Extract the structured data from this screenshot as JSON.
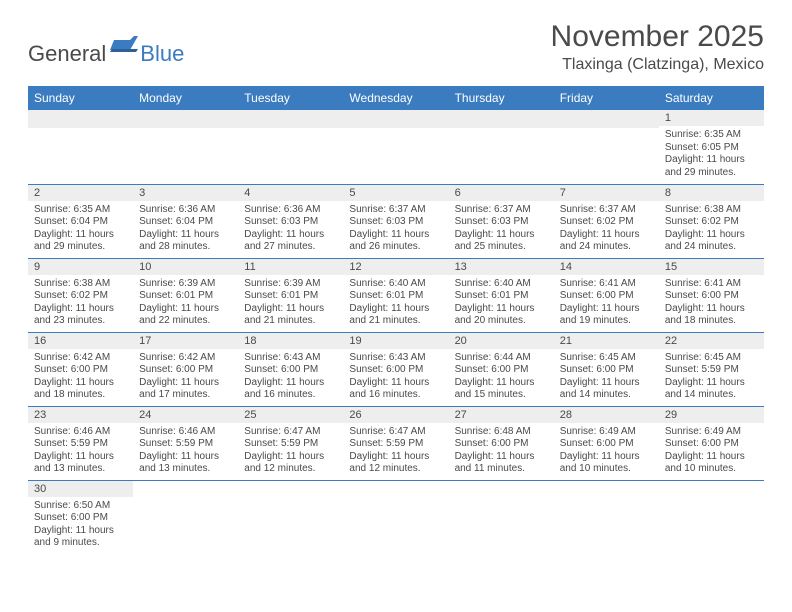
{
  "logo": {
    "general": "General",
    "blue": "Blue"
  },
  "title": "November 2025",
  "subtitle": "Tlaxinga (Clatzinga), Mexico",
  "colors": {
    "header_bg": "#3b7bbf",
    "header_text": "#ffffff",
    "daynum_bg": "#eeeeee",
    "text": "#4a4a4a",
    "rule": "#3b7bbf"
  },
  "weekdays": [
    "Sunday",
    "Monday",
    "Tuesday",
    "Wednesday",
    "Thursday",
    "Friday",
    "Saturday"
  ],
  "weeks": [
    [
      null,
      null,
      null,
      null,
      null,
      null,
      {
        "n": "1",
        "sr": "Sunrise: 6:35 AM",
        "ss": "Sunset: 6:05 PM",
        "dl": "Daylight: 11 hours and 29 minutes."
      }
    ],
    [
      {
        "n": "2",
        "sr": "Sunrise: 6:35 AM",
        "ss": "Sunset: 6:04 PM",
        "dl": "Daylight: 11 hours and 29 minutes."
      },
      {
        "n": "3",
        "sr": "Sunrise: 6:36 AM",
        "ss": "Sunset: 6:04 PM",
        "dl": "Daylight: 11 hours and 28 minutes."
      },
      {
        "n": "4",
        "sr": "Sunrise: 6:36 AM",
        "ss": "Sunset: 6:03 PM",
        "dl": "Daylight: 11 hours and 27 minutes."
      },
      {
        "n": "5",
        "sr": "Sunrise: 6:37 AM",
        "ss": "Sunset: 6:03 PM",
        "dl": "Daylight: 11 hours and 26 minutes."
      },
      {
        "n": "6",
        "sr": "Sunrise: 6:37 AM",
        "ss": "Sunset: 6:03 PM",
        "dl": "Daylight: 11 hours and 25 minutes."
      },
      {
        "n": "7",
        "sr": "Sunrise: 6:37 AM",
        "ss": "Sunset: 6:02 PM",
        "dl": "Daylight: 11 hours and 24 minutes."
      },
      {
        "n": "8",
        "sr": "Sunrise: 6:38 AM",
        "ss": "Sunset: 6:02 PM",
        "dl": "Daylight: 11 hours and 24 minutes."
      }
    ],
    [
      {
        "n": "9",
        "sr": "Sunrise: 6:38 AM",
        "ss": "Sunset: 6:02 PM",
        "dl": "Daylight: 11 hours and 23 minutes."
      },
      {
        "n": "10",
        "sr": "Sunrise: 6:39 AM",
        "ss": "Sunset: 6:01 PM",
        "dl": "Daylight: 11 hours and 22 minutes."
      },
      {
        "n": "11",
        "sr": "Sunrise: 6:39 AM",
        "ss": "Sunset: 6:01 PM",
        "dl": "Daylight: 11 hours and 21 minutes."
      },
      {
        "n": "12",
        "sr": "Sunrise: 6:40 AM",
        "ss": "Sunset: 6:01 PM",
        "dl": "Daylight: 11 hours and 21 minutes."
      },
      {
        "n": "13",
        "sr": "Sunrise: 6:40 AM",
        "ss": "Sunset: 6:01 PM",
        "dl": "Daylight: 11 hours and 20 minutes."
      },
      {
        "n": "14",
        "sr": "Sunrise: 6:41 AM",
        "ss": "Sunset: 6:00 PM",
        "dl": "Daylight: 11 hours and 19 minutes."
      },
      {
        "n": "15",
        "sr": "Sunrise: 6:41 AM",
        "ss": "Sunset: 6:00 PM",
        "dl": "Daylight: 11 hours and 18 minutes."
      }
    ],
    [
      {
        "n": "16",
        "sr": "Sunrise: 6:42 AM",
        "ss": "Sunset: 6:00 PM",
        "dl": "Daylight: 11 hours and 18 minutes."
      },
      {
        "n": "17",
        "sr": "Sunrise: 6:42 AM",
        "ss": "Sunset: 6:00 PM",
        "dl": "Daylight: 11 hours and 17 minutes."
      },
      {
        "n": "18",
        "sr": "Sunrise: 6:43 AM",
        "ss": "Sunset: 6:00 PM",
        "dl": "Daylight: 11 hours and 16 minutes."
      },
      {
        "n": "19",
        "sr": "Sunrise: 6:43 AM",
        "ss": "Sunset: 6:00 PM",
        "dl": "Daylight: 11 hours and 16 minutes."
      },
      {
        "n": "20",
        "sr": "Sunrise: 6:44 AM",
        "ss": "Sunset: 6:00 PM",
        "dl": "Daylight: 11 hours and 15 minutes."
      },
      {
        "n": "21",
        "sr": "Sunrise: 6:45 AM",
        "ss": "Sunset: 6:00 PM",
        "dl": "Daylight: 11 hours and 14 minutes."
      },
      {
        "n": "22",
        "sr": "Sunrise: 6:45 AM",
        "ss": "Sunset: 5:59 PM",
        "dl": "Daylight: 11 hours and 14 minutes."
      }
    ],
    [
      {
        "n": "23",
        "sr": "Sunrise: 6:46 AM",
        "ss": "Sunset: 5:59 PM",
        "dl": "Daylight: 11 hours and 13 minutes."
      },
      {
        "n": "24",
        "sr": "Sunrise: 6:46 AM",
        "ss": "Sunset: 5:59 PM",
        "dl": "Daylight: 11 hours and 13 minutes."
      },
      {
        "n": "25",
        "sr": "Sunrise: 6:47 AM",
        "ss": "Sunset: 5:59 PM",
        "dl": "Daylight: 11 hours and 12 minutes."
      },
      {
        "n": "26",
        "sr": "Sunrise: 6:47 AM",
        "ss": "Sunset: 5:59 PM",
        "dl": "Daylight: 11 hours and 12 minutes."
      },
      {
        "n": "27",
        "sr": "Sunrise: 6:48 AM",
        "ss": "Sunset: 6:00 PM",
        "dl": "Daylight: 11 hours and 11 minutes."
      },
      {
        "n": "28",
        "sr": "Sunrise: 6:49 AM",
        "ss": "Sunset: 6:00 PM",
        "dl": "Daylight: 11 hours and 10 minutes."
      },
      {
        "n": "29",
        "sr": "Sunrise: 6:49 AM",
        "ss": "Sunset: 6:00 PM",
        "dl": "Daylight: 11 hours and 10 minutes."
      }
    ],
    [
      {
        "n": "30",
        "sr": "Sunrise: 6:50 AM",
        "ss": "Sunset: 6:00 PM",
        "dl": "Daylight: 11 hours and 9 minutes."
      },
      null,
      null,
      null,
      null,
      null,
      null
    ]
  ]
}
